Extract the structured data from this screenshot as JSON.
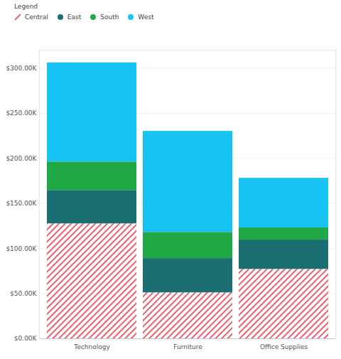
{
  "chart_data": {
    "type": "bar",
    "stacked": true,
    "grid": true,
    "legend": "top-left",
    "legend_title": "Legend",
    "categories": [
      "Technology",
      "Furniture",
      "Office Supplies"
    ],
    "series": [
      {
        "name": "Central",
        "color": "#e8606f",
        "values": [
          127500,
          51000,
          77000
        ]
      },
      {
        "name": "East",
        "color": "#1b6f72",
        "values": [
          37000,
          38000,
          32500
        ]
      },
      {
        "name": "South",
        "color": "#1fa843",
        "values": [
          31500,
          29000,
          13500
        ]
      },
      {
        "name": "West",
        "color": "#17c3f2",
        "values": [
          110000,
          112000,
          55000
        ]
      }
    ],
    "ylim": [
      0,
      320000
    ],
    "yticks": [
      {
        "value": 0,
        "label": "$0.00K"
      },
      {
        "value": 50000,
        "label": "$50.00K"
      },
      {
        "value": 100000,
        "label": "$100.00K"
      },
      {
        "value": 150000,
        "label": "$150.00K"
      },
      {
        "value": 200000,
        "label": "$200.00K"
      },
      {
        "value": 250000,
        "label": "$250.00K"
      },
      {
        "value": 300000,
        "label": "$300.00K"
      }
    ]
  }
}
